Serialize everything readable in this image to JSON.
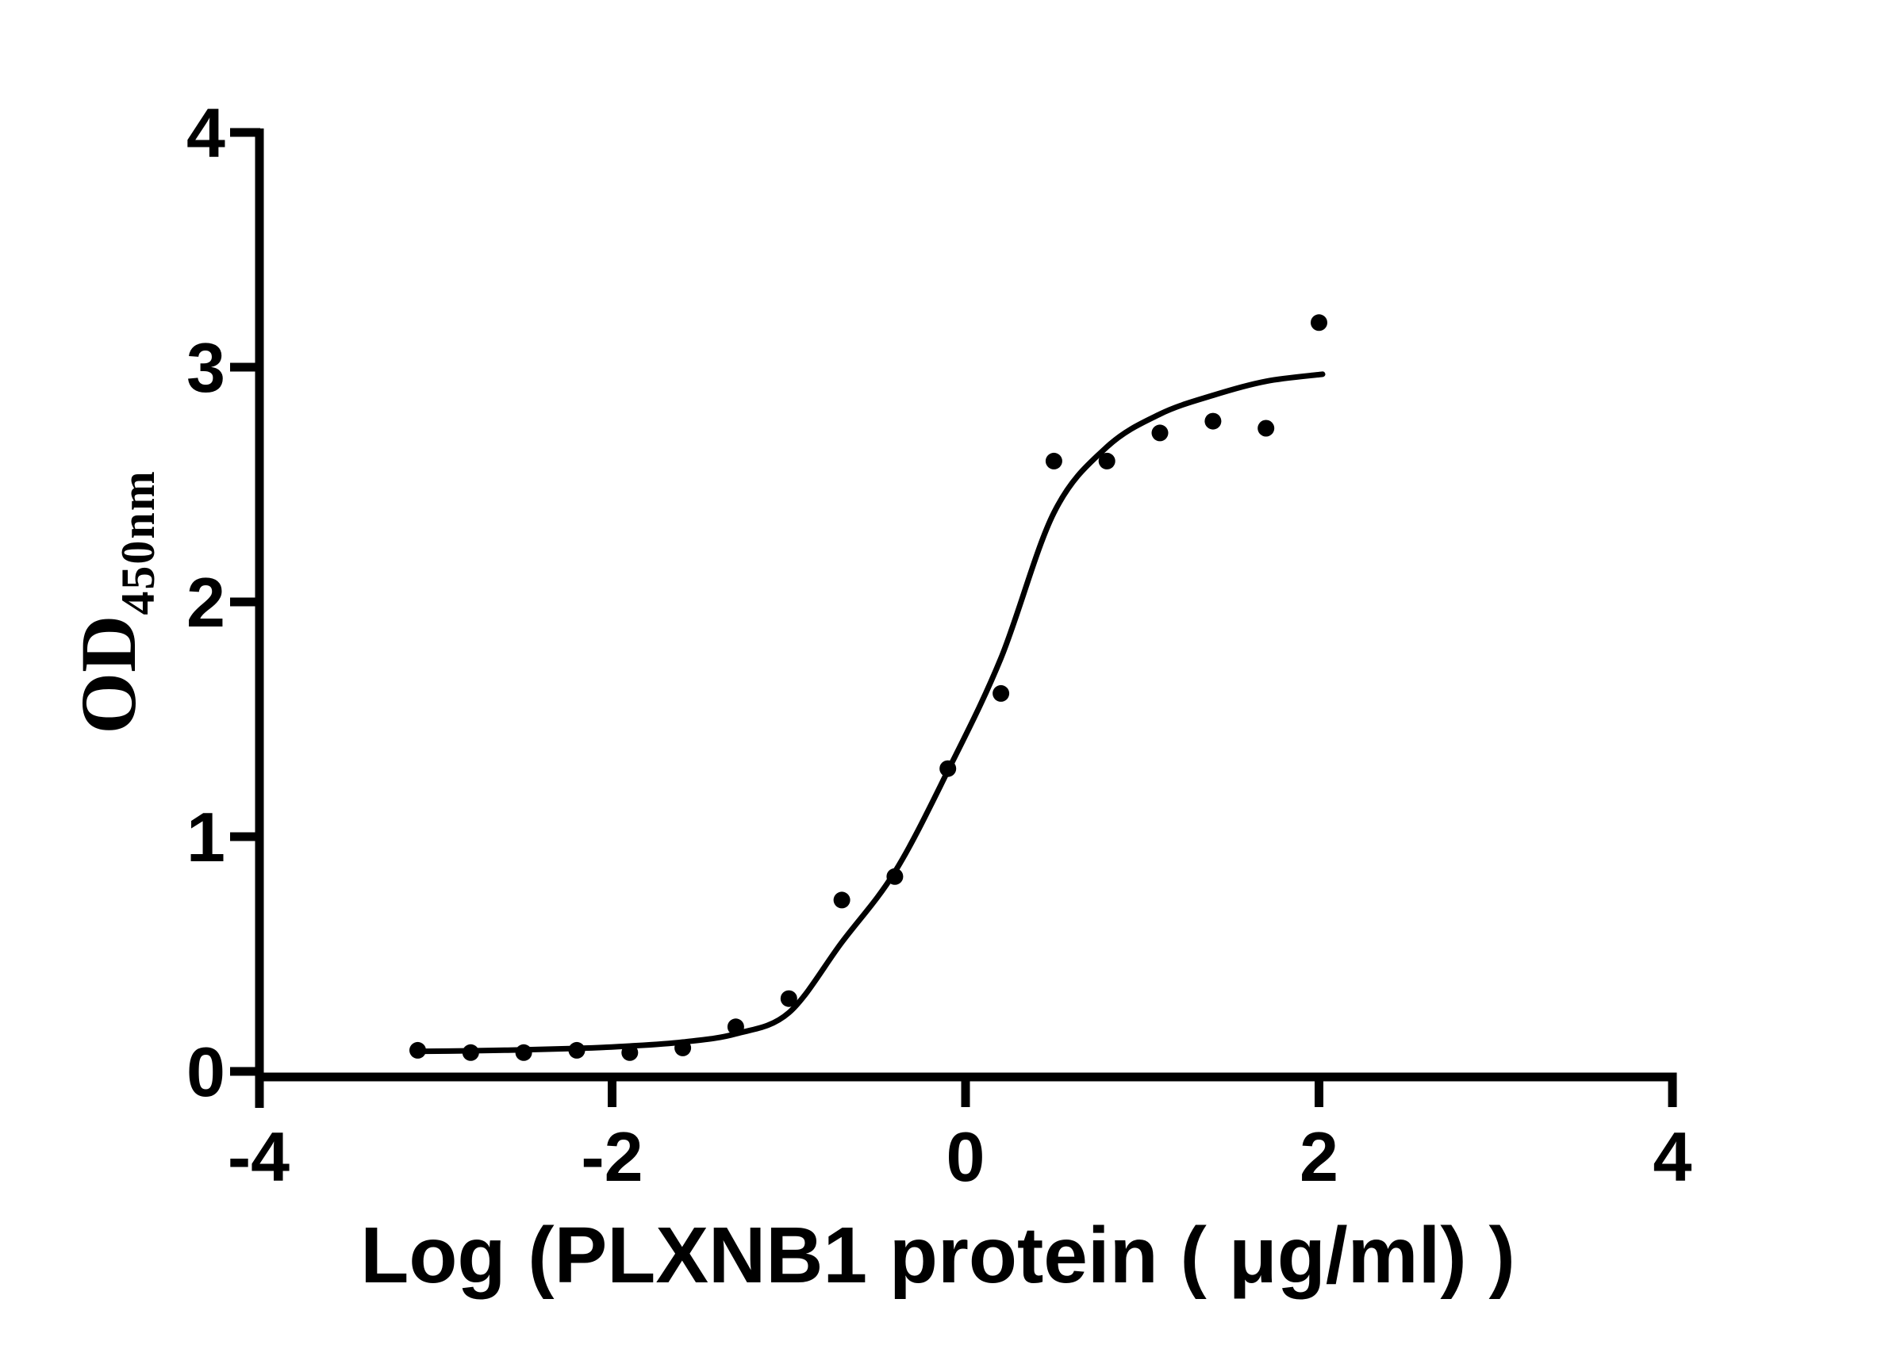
{
  "figure": {
    "background_color": "#ffffff",
    "ink_color": "#000000"
  },
  "chart_data": {
    "type": "scatter",
    "subtype": "sigmoidal-dose-response-binding-curve",
    "title": "",
    "xlabel": "Log（PLXNB1 protein（ μg/ml） ）",
    "ylabel_main": "OD",
    "ylabel_subscript": "450nm",
    "xlim": [
      -4,
      4
    ],
    "ylim": [
      0,
      4
    ],
    "x_ticks": [
      -4,
      -2,
      0,
      2,
      4
    ],
    "y_ticks": [
      0,
      1,
      2,
      3,
      4
    ],
    "grid": false,
    "legend": false,
    "series": [
      {
        "marker": "filled-circle",
        "color": "#000000",
        "points": [
          [
            -3.1,
            0.09
          ],
          [
            -2.8,
            0.08
          ],
          [
            -2.5,
            0.08
          ],
          [
            -2.2,
            0.09
          ],
          [
            -1.9,
            0.08
          ],
          [
            -1.6,
            0.1
          ],
          [
            -1.3,
            0.19
          ],
          [
            -1.0,
            0.31
          ],
          [
            -0.7,
            0.73
          ],
          [
            -0.4,
            0.83
          ],
          [
            -0.1,
            1.29
          ],
          [
            0.2,
            1.61
          ],
          [
            0.5,
            2.6
          ],
          [
            0.8,
            2.6
          ],
          [
            1.1,
            2.72
          ],
          [
            1.4,
            2.77
          ],
          [
            1.7,
            2.74
          ],
          [
            2.0,
            3.19
          ]
        ]
      }
    ],
    "fit_curve": {
      "type": "four-parameter-logistic-fit",
      "color": "#000000",
      "points": [
        [
          -3.12,
          0.085
        ],
        [
          -2.8,
          0.088
        ],
        [
          -2.5,
          0.092
        ],
        [
          -2.2,
          0.098
        ],
        [
          -1.9,
          0.108
        ],
        [
          -1.6,
          0.125
        ],
        [
          -1.3,
          0.16
        ],
        [
          -1.0,
          0.25
        ],
        [
          -0.7,
          0.55
        ],
        [
          -0.4,
          0.85
        ],
        [
          -0.1,
          1.28
        ],
        [
          0.2,
          1.76
        ],
        [
          0.5,
          2.38
        ],
        [
          0.8,
          2.66
        ],
        [
          1.1,
          2.8
        ],
        [
          1.4,
          2.88
        ],
        [
          1.7,
          2.94
        ],
        [
          2.02,
          2.97
        ]
      ]
    }
  }
}
